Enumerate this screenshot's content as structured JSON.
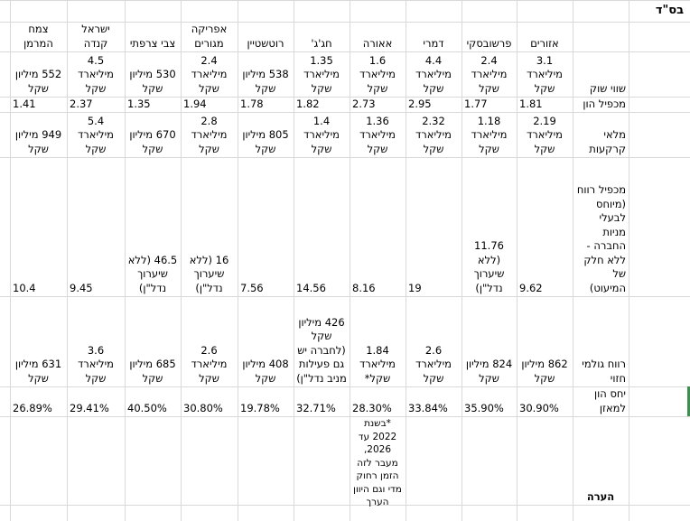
{
  "sheet": {
    "title": "בס\"ד",
    "columns": [
      "אזורים",
      "פרשובסקי",
      "דמרי",
      "אאורה",
      "חג'ג'",
      "רוטשטיין",
      "אפריקה מגורים",
      "צבי צרפתי",
      "ישראל קנדה",
      "צמח המרמן"
    ],
    "rows": [
      {
        "label": "שווי שוק",
        "values": [
          "3.1 מיליארד שקל",
          "2.4 מיליארד שקל",
          "4.4 מיליארד שקל",
          "1.6 מיליארד שקל",
          "1.35 מיליארד שקל",
          "538 מיליון שקל",
          "2.4 מיליארד שקל",
          "530 מיליון שקל",
          "4.5 מיליארד שקל",
          "552 מיליון שקל"
        ]
      },
      {
        "label": "מכפיל הון",
        "values": [
          "1.81",
          "1.77",
          "2.95",
          "2.73",
          "1.82",
          "1.78",
          "1.94",
          "1.35",
          "2.37",
          "1.41"
        ]
      },
      {
        "label": "מלאי קרקעות",
        "values": [
          "2.19 מיליארד שקל",
          "1.18 מיליארד שקל",
          "2.32 מיליארד שקל",
          "1.36 מיליארד שקל",
          "1.4 מיליארד שקל",
          "805 מיליון שקל",
          "2.8 מיליארד שקל",
          "670 מיליון שקל",
          "5.4 מיליארד שקל",
          "949 מיליון שקל"
        ]
      },
      {
        "label": "מכפיל רווח (מיוחס לבעלי מניות החברה - ללא חלק של המיעוט)",
        "values": [
          "9.62",
          "11.76 (ללא שיערוך נדל\"ן)",
          "19",
          "8.16",
          "14.56",
          "7.56",
          "16 (ללא שיערוך נדל\"ן)",
          "46.5 (ללא שיערוך נדל\"ן)",
          "9.45",
          "10.4"
        ]
      },
      {
        "label": "רווח גולמי חזוי",
        "values": [
          "862 מיליון שקל",
          "824 מיליון שקל",
          "2.6 מיליארד שקל",
          "1.84 מיליארד שקל*",
          "426 מיליון שקל (לחברה יש גם פעילות מניב נדל\"ן)",
          "408 מיליון שקל",
          "2.6 מיליארד שקל",
          "685 מיליון שקל",
          "3.6 מיליארד שקל",
          "631 מיליון שקל"
        ]
      },
      {
        "label": "יחס הון למאזן",
        "values": [
          "30.90%",
          "35.90%",
          "33.84%",
          "28.30%",
          "32.71%",
          "19.78%",
          "30.80%",
          "40.50%",
          "29.41%",
          "26.89%"
        ]
      },
      {
        "label": "הערה",
        "values": [
          "",
          "",
          "",
          "*בשנת 2022 עד 2026, מעבר לזה הזמן רחוק מדי וגם היוון הערך",
          "",
          "",
          "",
          "",
          "",
          ""
        ]
      }
    ]
  }
}
